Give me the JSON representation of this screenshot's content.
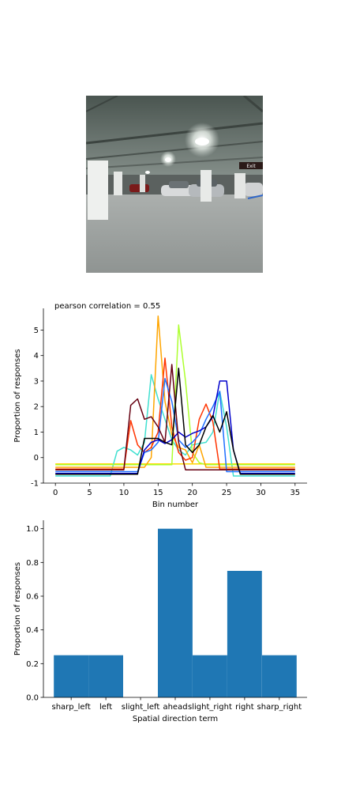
{
  "photo": {
    "icon": "parking-garage-photo",
    "sign_text": "Exit"
  },
  "chart_data": [
    {
      "type": "line",
      "title": "pearson correlation = 0.55",
      "xlabel": "Bin number",
      "ylabel": "Proportion of responses",
      "xlim": [
        -1.75,
        36.75
      ],
      "ylim": [
        -1.0,
        5.85
      ],
      "xticks": [
        0,
        5,
        10,
        15,
        20,
        25,
        30,
        35
      ],
      "yticks": [
        -1,
        0,
        1,
        2,
        3,
        4,
        5
      ],
      "grid": false,
      "series": [
        {
          "color": "#ffd700",
          "y": [
            -0.25,
            -0.25,
            -0.25,
            -0.25,
            -0.25,
            -0.25,
            -0.25,
            -0.25,
            -0.25,
            -0.25,
            -0.25,
            -0.25,
            -0.25,
            -0.25,
            -0.25,
            -0.25,
            -0.25,
            -0.25,
            -0.25,
            -0.25,
            -0.25,
            -0.25,
            -0.25,
            -0.25,
            -0.25,
            -0.25,
            -0.25,
            -0.25,
            -0.25,
            -0.25,
            -0.25,
            -0.25,
            -0.25,
            -0.25,
            -0.25,
            -0.25
          ]
        },
        {
          "color": "#40e0d0",
          "y": [
            -0.72,
            -0.72,
            -0.72,
            -0.72,
            -0.72,
            -0.72,
            -0.72,
            -0.72,
            -0.72,
            0.25,
            0.4,
            0.3,
            0.1,
            0.6,
            3.25,
            2.3,
            1.5,
            0.7,
            0.3,
            0.1,
            0.5,
            0.55,
            0.6,
            1.0,
            2.6,
            1.2,
            -0.72,
            -0.72,
            -0.72,
            -0.72,
            -0.72,
            -0.72,
            -0.72,
            -0.72,
            -0.72,
            -0.72
          ]
        },
        {
          "color": "#adff2f",
          "y": [
            -0.28,
            -0.28,
            -0.28,
            -0.28,
            -0.28,
            -0.28,
            -0.28,
            -0.28,
            -0.28,
            -0.28,
            -0.28,
            -0.28,
            -0.28,
            -0.28,
            -0.28,
            -0.28,
            -0.28,
            -0.28,
            5.2,
            3.0,
            0.2,
            -0.2,
            -0.28,
            -0.28,
            -0.28,
            -0.28,
            -0.28,
            -0.28,
            -0.28,
            -0.28,
            -0.28,
            -0.28,
            -0.28,
            -0.28,
            -0.28,
            -0.28
          ]
        },
        {
          "color": "#ffa500",
          "y": [
            -0.38,
            -0.38,
            -0.38,
            -0.38,
            -0.38,
            -0.38,
            -0.38,
            -0.38,
            -0.38,
            -0.38,
            -0.38,
            -0.38,
            -0.38,
            -0.38,
            0.0,
            5.55,
            2.2,
            0.9,
            0.4,
            0.3,
            -0.2,
            0.5,
            -0.38,
            -0.38,
            -0.38,
            -0.38,
            -0.38,
            -0.38,
            -0.38,
            -0.38,
            -0.38,
            -0.38,
            -0.38,
            -0.38,
            -0.38,
            -0.38
          ]
        },
        {
          "color": "#ff3300",
          "y": [
            -0.45,
            -0.45,
            -0.45,
            -0.45,
            -0.45,
            -0.45,
            -0.45,
            -0.45,
            -0.45,
            -0.45,
            -0.45,
            1.45,
            0.5,
            0.2,
            0.4,
            1.0,
            3.9,
            1.2,
            0.2,
            -0.1,
            0.0,
            1.5,
            2.1,
            1.4,
            -0.45,
            -0.45,
            -0.45,
            -0.45,
            -0.45,
            -0.45,
            -0.45,
            -0.45,
            -0.45,
            -0.45,
            -0.45,
            -0.45
          ]
        },
        {
          "color": "#1e6fff",
          "y": [
            -0.55,
            -0.55,
            -0.55,
            -0.55,
            -0.55,
            -0.55,
            -0.55,
            -0.55,
            -0.55,
            -0.55,
            -0.55,
            -0.55,
            -0.55,
            0.2,
            0.3,
            0.6,
            3.1,
            2.2,
            0.7,
            0.4,
            0.6,
            0.9,
            1.5,
            2.0,
            2.6,
            -0.55,
            -0.55,
            -0.55,
            -0.55,
            -0.55,
            -0.55,
            -0.55,
            -0.55,
            -0.55,
            -0.55,
            -0.55
          ]
        },
        {
          "color": "#0000cc",
          "y": [
            -0.62,
            -0.62,
            -0.62,
            -0.62,
            -0.62,
            -0.62,
            -0.62,
            -0.62,
            -0.62,
            -0.62,
            -0.62,
            -0.62,
            -0.62,
            0.3,
            0.6,
            0.7,
            0.55,
            0.7,
            1.0,
            0.8,
            0.95,
            1.05,
            1.2,
            1.6,
            3.0,
            3.0,
            0.3,
            -0.62,
            -0.62,
            -0.62,
            -0.62,
            -0.62,
            -0.62,
            -0.62,
            -0.62,
            -0.62
          ]
        },
        {
          "color": "#660011",
          "y": [
            -0.48,
            -0.48,
            -0.48,
            -0.48,
            -0.48,
            -0.48,
            -0.48,
            -0.48,
            -0.48,
            -0.48,
            -0.48,
            2.05,
            2.3,
            1.5,
            1.6,
            1.2,
            0.6,
            3.65,
            0.6,
            -0.48,
            -0.48,
            -0.48,
            -0.48,
            -0.48,
            -0.48,
            -0.48,
            -0.48,
            -0.48,
            -0.48,
            -0.48,
            -0.48,
            -0.48,
            -0.48,
            -0.48,
            -0.48,
            -0.48
          ]
        },
        {
          "color": "#000000",
          "y": [
            -0.65,
            -0.65,
            -0.65,
            -0.65,
            -0.65,
            -0.65,
            -0.65,
            -0.65,
            -0.65,
            -0.65,
            -0.65,
            -0.65,
            -0.65,
            0.75,
            0.75,
            0.75,
            0.6,
            0.5,
            3.5,
            0.5,
            0.2,
            0.5,
            1.2,
            1.65,
            1.0,
            1.8,
            0.3,
            -0.65,
            -0.65,
            -0.65,
            -0.65,
            -0.65,
            -0.65,
            -0.65,
            -0.65,
            -0.65
          ]
        }
      ]
    },
    {
      "type": "bar",
      "xlabel": "Spatial direction term",
      "ylabel": "Proportion of responses",
      "categories": [
        "sharp_left",
        "left",
        "slight_left",
        "ahead",
        "slight_right",
        "right",
        "sharp_right"
      ],
      "values": [
        0.25,
        0.25,
        0.0,
        1.0,
        0.25,
        0.75,
        0.25
      ],
      "ylim": [
        0.0,
        1.05
      ],
      "yticks": [
        "0.0",
        "0.2",
        "0.4",
        "0.6",
        "0.8",
        "1.0"
      ],
      "bar_color": "#1f77b4",
      "grid": false
    }
  ]
}
